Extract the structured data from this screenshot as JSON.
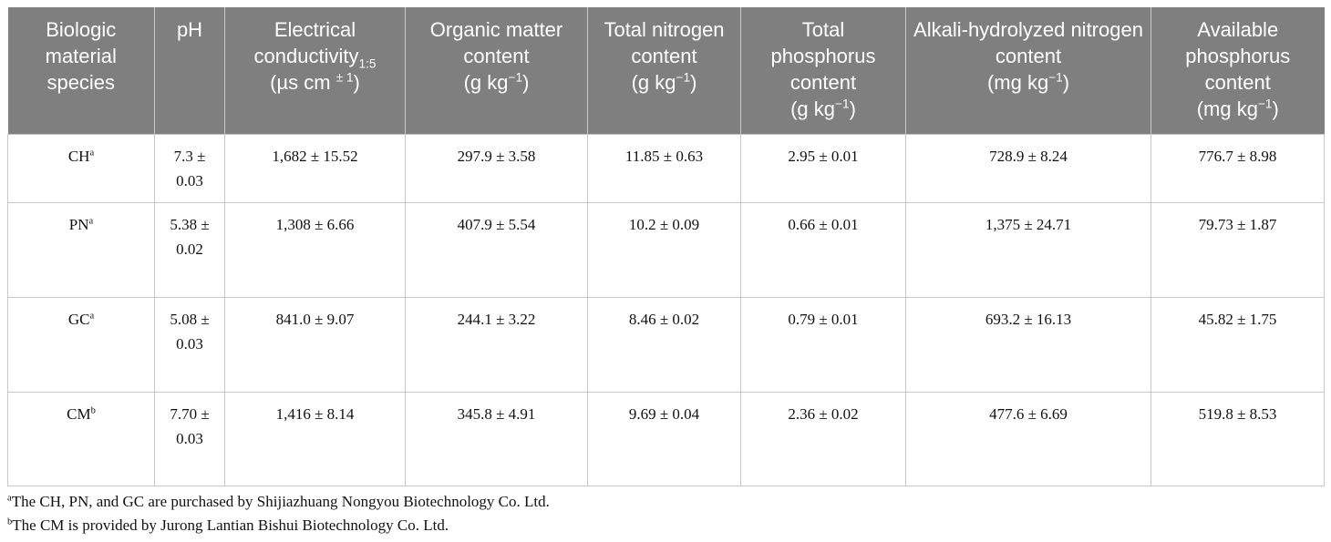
{
  "table": {
    "header": [
      {
        "text": [
          {
            "text": "Biologic material species"
          }
        ],
        "unit": []
      },
      {
        "text": [
          {
            "text": "pH"
          }
        ],
        "unit": []
      },
      {
        "text": [
          {
            "text": "Electrical conductivity"
          },
          {
            "text": "1:5",
            "script": "sub"
          }
        ],
        "unit": [
          {
            "text": "(µs cm "
          },
          {
            "text": "± 1",
            "script": "sup"
          },
          {
            "text": ")"
          }
        ]
      },
      {
        "text": [
          {
            "text": "Organic matter content"
          }
        ],
        "unit": [
          {
            "text": "(g kg"
          },
          {
            "text": "−1",
            "script": "sup"
          },
          {
            "text": ")"
          }
        ]
      },
      {
        "text": [
          {
            "text": "Total nitrogen content"
          }
        ],
        "unit": [
          {
            "text": "(g kg"
          },
          {
            "text": "−1",
            "script": "sup"
          },
          {
            "text": ")"
          }
        ]
      },
      {
        "text": [
          {
            "text": "Total phosphorus content"
          }
        ],
        "unit": [
          {
            "text": "(g kg"
          },
          {
            "text": "−1",
            "script": "sup"
          },
          {
            "text": ")"
          }
        ]
      },
      {
        "text": [
          {
            "text": "Alkali-hydrolyzed nitrogen content"
          }
        ],
        "unit": [
          {
            "text": "(mg kg"
          },
          {
            "text": "−1",
            "script": "sup"
          },
          {
            "text": ")"
          }
        ]
      },
      {
        "text": [
          {
            "text": "Available phosphorus content"
          }
        ],
        "unit": [
          {
            "text": "(mg kg"
          },
          {
            "text": "−1",
            "script": "sup"
          },
          {
            "text": ")"
          }
        ]
      }
    ],
    "rows": [
      {
        "species": "CH",
        "note": "a",
        "cells": [
          "7.3 ± 0.03",
          "1,682 ± 15.52",
          "297.9 ± 3.58",
          "11.85 ± 0.63",
          "2.95 ± 0.01",
          "728.9 ± 8.24",
          "776.7 ± 8.98"
        ]
      },
      {
        "species": "PN",
        "note": "a",
        "cells": [
          "5.38 ± 0.02",
          "1,308 ± 6.66",
          "407.9 ± 5.54",
          "10.2 ± 0.09",
          "0.66 ± 0.01",
          "1,375 ± 24.71",
          "79.73 ± 1.87"
        ]
      },
      {
        "species": "GC",
        "note": "a",
        "cells": [
          "5.08 ± 0.03",
          "841.0 ± 9.07",
          "244.1 ± 3.22",
          "8.46 ± 0.02",
          "0.79 ± 0.01",
          "693.2 ± 16.13",
          "45.82 ± 1.75"
        ]
      },
      {
        "species": "CM",
        "note": "b",
        "cells": [
          "7.70 ± 0.03",
          "1,416 ± 8.14",
          "345.8 ± 4.91",
          "9.69 ± 0.04",
          "2.36 ± 0.02",
          "477.6 ± 6.69",
          "519.8 ± 8.53"
        ]
      }
    ]
  },
  "footnotes": [
    {
      "mark": "a",
      "text": "The CH, PN, and GC are purchased by Shijiazhuang Nongyou Biotechnology Co. Ltd."
    },
    {
      "mark": "b",
      "text": "The CM is provided by Jurong Lantian Bishui Biotechnology Co. Ltd."
    }
  ]
}
